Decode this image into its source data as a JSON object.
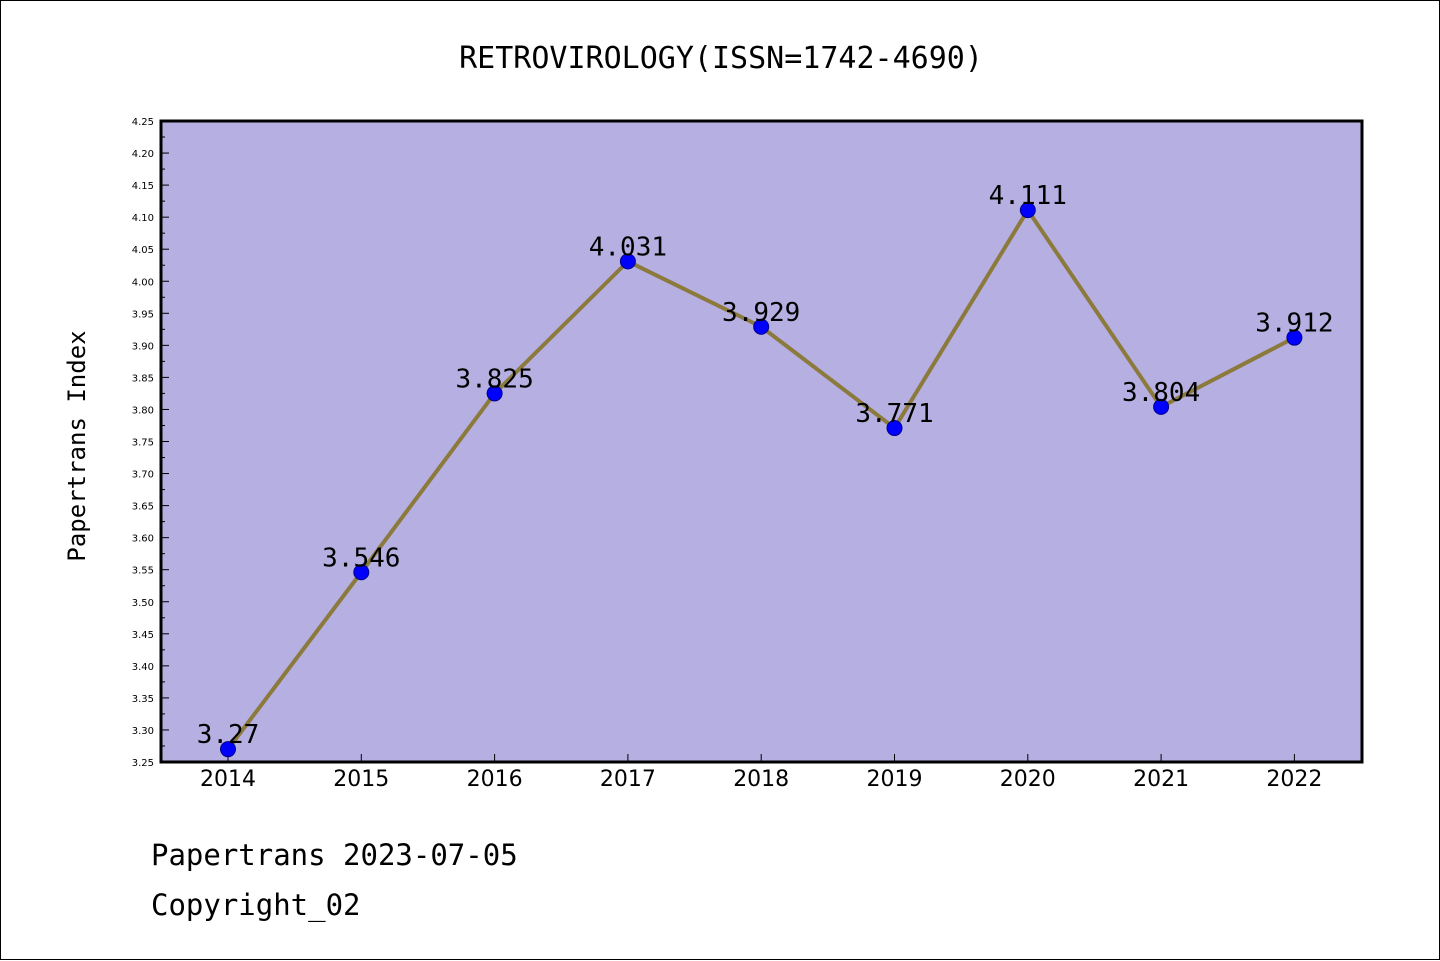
{
  "chart_data": {
    "type": "line",
    "title": "RETROVIROLOGY(ISSN=1742-4690)",
    "ylabel": "Papertrans Index",
    "xlabel": "",
    "categories": [
      "2014",
      "2015",
      "2016",
      "2017",
      "2018",
      "2019",
      "2020",
      "2021",
      "2022"
    ],
    "values": [
      3.27,
      3.546,
      3.825,
      4.031,
      3.929,
      3.771,
      4.111,
      3.804,
      3.912
    ],
    "data_labels": [
      "3.27",
      "3.546",
      "3.825",
      "4.031",
      "3.929",
      "3.771",
      "4.111",
      "3.804",
      "3.912"
    ],
    "ylim": [
      3.25,
      4.25
    ],
    "ytick_step": 0.05,
    "grid": false,
    "plot_background": "#b5afe2",
    "line_color": "#8c7a3c",
    "marker_color": "#0000ff"
  },
  "footer": {
    "line1": "Papertrans 2023-07-05",
    "line2": "Copyright_02"
  }
}
